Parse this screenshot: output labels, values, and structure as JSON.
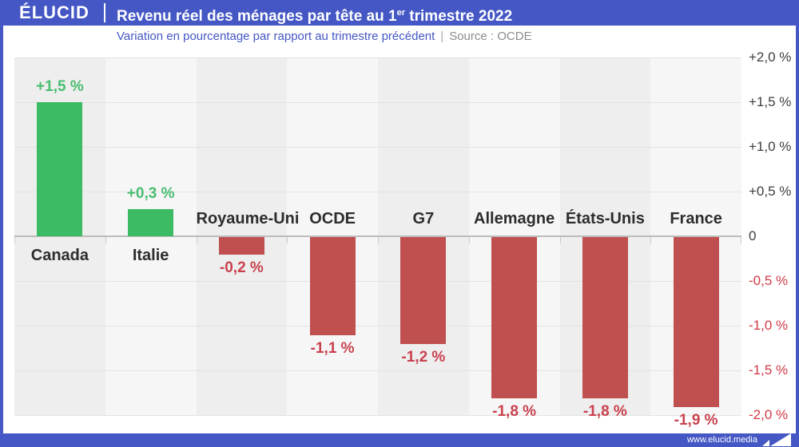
{
  "header": {
    "logo": "ÉLUCID",
    "title_prefix": "Revenu réel des ménages par tête au 1",
    "title_sup": "er",
    "title_suffix": " trimestre 2022"
  },
  "subtitle": {
    "text": "Variation en pourcentage par rapport au trimestre précédent",
    "divider": "|",
    "source": "Source : OCDE"
  },
  "chart_data": {
    "type": "bar",
    "title": "Revenu réel des ménages par tête au 1er trimestre 2022",
    "subtitle": "Variation en pourcentage par rapport au trimestre précédent",
    "source": "Source : OCDE",
    "categories": [
      "Canada",
      "Italie",
      "Royaume-Uni",
      "OCDE",
      "G7",
      "Allemagne",
      "États-Unis",
      "France"
    ],
    "values": [
      1.5,
      0.3,
      -0.2,
      -1.1,
      -1.2,
      -1.8,
      -1.8,
      -1.9
    ],
    "value_labels": [
      "+1,5 %",
      "+0,3 %",
      "-0,2 %",
      "-1,1 %",
      "-1,2 %",
      "-1,8 %",
      "-1,8 %",
      "-1,9 %"
    ],
    "ylabel": "",
    "xlabel": "",
    "ylim": [
      -2.0,
      2.0
    ],
    "y_tick_labels": [
      "+2,0 %",
      "+1,5 %",
      "+1,0 %",
      "+0,5 %",
      "0",
      "-0,5 %",
      "-1,0 %",
      "-1,5 %",
      "-2,0 %"
    ],
    "y_tick_values": [
      2.0,
      1.5,
      1.0,
      0.5,
      0,
      -0.5,
      -1.0,
      -1.5,
      -2.0
    ],
    "axis_side": "right",
    "grid": true,
    "legend": false,
    "colors": {
      "accent_blue": "#4457c4",
      "bar_positive": "#3cba64",
      "bar_negative": "#c04f4f",
      "label_positive": "#4abd70",
      "label_negative": "#c9414e",
      "axis_negative": "#d23947",
      "axis_positive": "#3e3e3e",
      "band_dark": "#eeeeee",
      "band_light": "#f6f6f6"
    }
  },
  "footer": {
    "url": "www.elucid.media"
  }
}
